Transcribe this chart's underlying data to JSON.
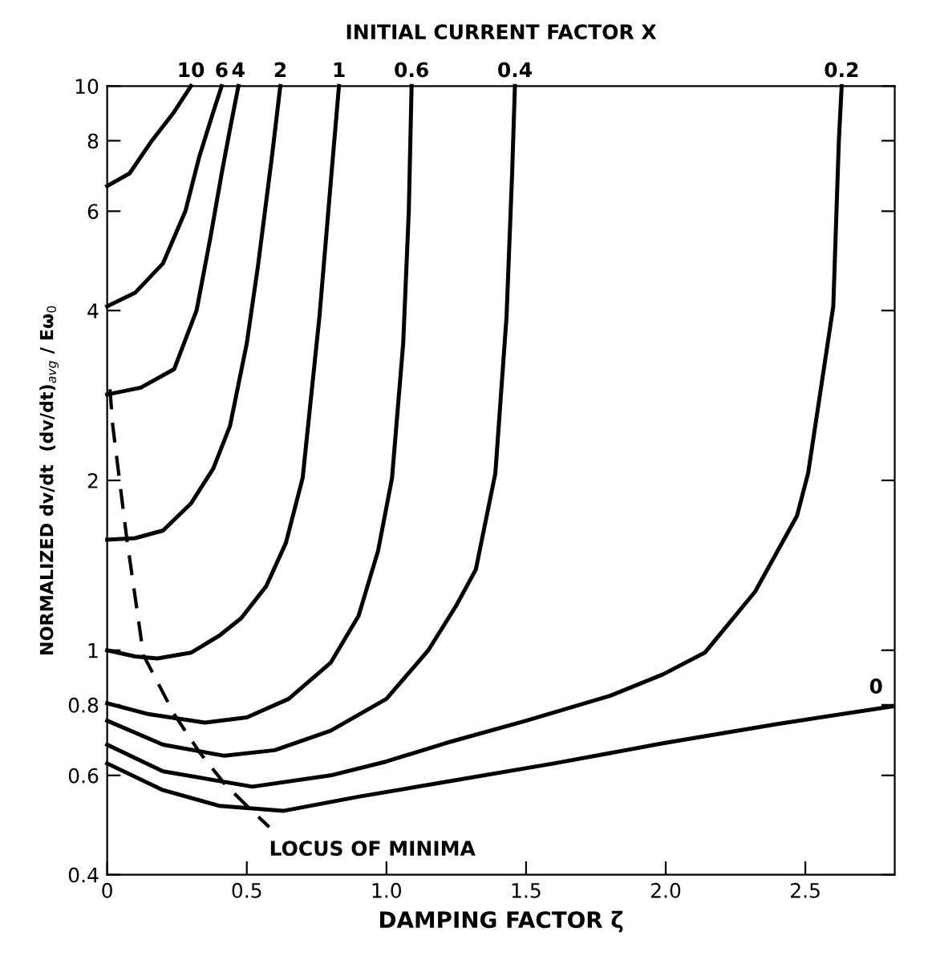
{
  "chart_data": {
    "type": "line",
    "xlabel": "DAMPING FACTOR ζ",
    "x2label": "INITIAL CURRENT FACTOR X",
    "ylabel": "NORMALIZED dv/dt  (dv/dt)$_{avg}$ / Eω$_{0}$",
    "log": "y",
    "xlim": [
      0,
      2.82
    ],
    "ylim": [
      0.4,
      10
    ],
    "xticks": [
      0,
      0.5,
      {
        "value": 1,
        "label": "1.0"
      },
      1.5,
      {
        "value": 2,
        "label": "2.0"
      },
      2.5
    ],
    "yticks": [
      0.4,
      0.6,
      0.8,
      1,
      2,
      4,
      6,
      8,
      10
    ],
    "grid": false,
    "legend": false,
    "marker": "none",
    "series": [
      {
        "name": "10",
        "color": "#000000",
        "line_style": "solid",
        "x": [
          0,
          0.08,
          0.16,
          0.24,
          0.3
        ],
        "values": [
          6.65,
          7.0,
          8.0,
          9.0,
          10
        ]
      },
      {
        "name": "6",
        "color": "#000000",
        "line_style": "solid",
        "x": [
          0,
          0.1,
          0.2,
          0.28,
          0.33,
          0.38,
          0.41
        ],
        "values": [
          4.07,
          4.3,
          4.85,
          6.0,
          7.5,
          9.0,
          10
        ]
      },
      {
        "name": "4",
        "color": "#000000",
        "line_style": "solid",
        "x": [
          0,
          0.12,
          0.24,
          0.32,
          0.37,
          0.41,
          0.44,
          0.47
        ],
        "values": [
          2.84,
          2.92,
          3.15,
          4.0,
          5.4,
          7.0,
          8.4,
          10
        ]
      },
      {
        "name": "2",
        "color": "#000000",
        "line_style": "solid",
        "x": [
          0,
          0.1,
          0.2,
          0.3,
          0.38,
          0.44,
          0.5,
          0.54,
          0.59,
          0.62
        ],
        "values": [
          1.57,
          1.58,
          1.63,
          1.82,
          2.1,
          2.5,
          3.5,
          4.8,
          7.5,
          10
        ]
      },
      {
        "name": "1",
        "color": "#000000",
        "line_style": "solid",
        "x": [
          0,
          0.1,
          0.18,
          0.3,
          0.4,
          0.48,
          0.57,
          0.64,
          0.7,
          0.76,
          0.8,
          0.83
        ],
        "values": [
          1.0,
          0.975,
          0.967,
          0.99,
          1.06,
          1.14,
          1.3,
          1.55,
          2.02,
          3.9,
          6.7,
          10
        ]
      },
      {
        "name": "0.6",
        "color": "#000000",
        "line_style": "solid",
        "x": [
          0,
          0.15,
          0.35,
          0.5,
          0.65,
          0.8,
          0.9,
          0.97,
          1.02,
          1.06,
          1.08,
          1.09
        ],
        "values": [
          0.805,
          0.77,
          0.744,
          0.76,
          0.82,
          0.95,
          1.15,
          1.5,
          2.02,
          3.5,
          6,
          10
        ]
      },
      {
        "name": "0.4",
        "color": "#000000",
        "line_style": "solid",
        "x": [
          0,
          0.2,
          0.42,
          0.6,
          0.8,
          1.0,
          1.15,
          1.25,
          1.32,
          1.39,
          1.43,
          1.45,
          1.46
        ],
        "values": [
          0.75,
          0.68,
          0.65,
          0.665,
          0.72,
          0.82,
          1.0,
          1.2,
          1.39,
          2.06,
          3.9,
          7,
          10
        ]
      },
      {
        "name": "0.2",
        "color": "#000000",
        "line_style": "solid",
        "x": [
          0,
          0.2,
          0.52,
          0.8,
          1.0,
          1.21,
          1.5,
          1.8,
          1.99,
          2.14,
          2.32,
          2.47,
          2.51,
          2.6,
          2.62,
          2.63
        ],
        "values": [
          0.68,
          0.61,
          0.573,
          0.6,
          0.635,
          0.684,
          0.75,
          0.83,
          0.906,
          0.99,
          1.27,
          1.73,
          2.06,
          4.07,
          8.0,
          10
        ]
      },
      {
        "name": "0",
        "color": "#000000",
        "line_style": "solid",
        "x": [
          0,
          0.2,
          0.4,
          0.63,
          0.9,
          1.21,
          1.6,
          1.99,
          2.4,
          2.81
        ],
        "values": [
          0.63,
          0.565,
          0.53,
          0.519,
          0.55,
          0.584,
          0.63,
          0.684,
          0.74,
          0.795
        ]
      },
      {
        "color": "#000000",
        "line_style": "dashed",
        "x": [
          0.01,
          0.02,
          0.07,
          0.13,
          0.24,
          0.33,
          0.42,
          0.5,
          0.58
        ],
        "values": [
          2.9,
          2.5,
          1.58,
          0.98,
          0.77,
          0.66,
          0.58,
          0.53,
          0.486
        ]
      }
    ],
    "annotations": [
      {
        "text": "LOCUS OF MINIMA",
        "x": 0.58,
        "y": 0.486
      }
    ]
  }
}
